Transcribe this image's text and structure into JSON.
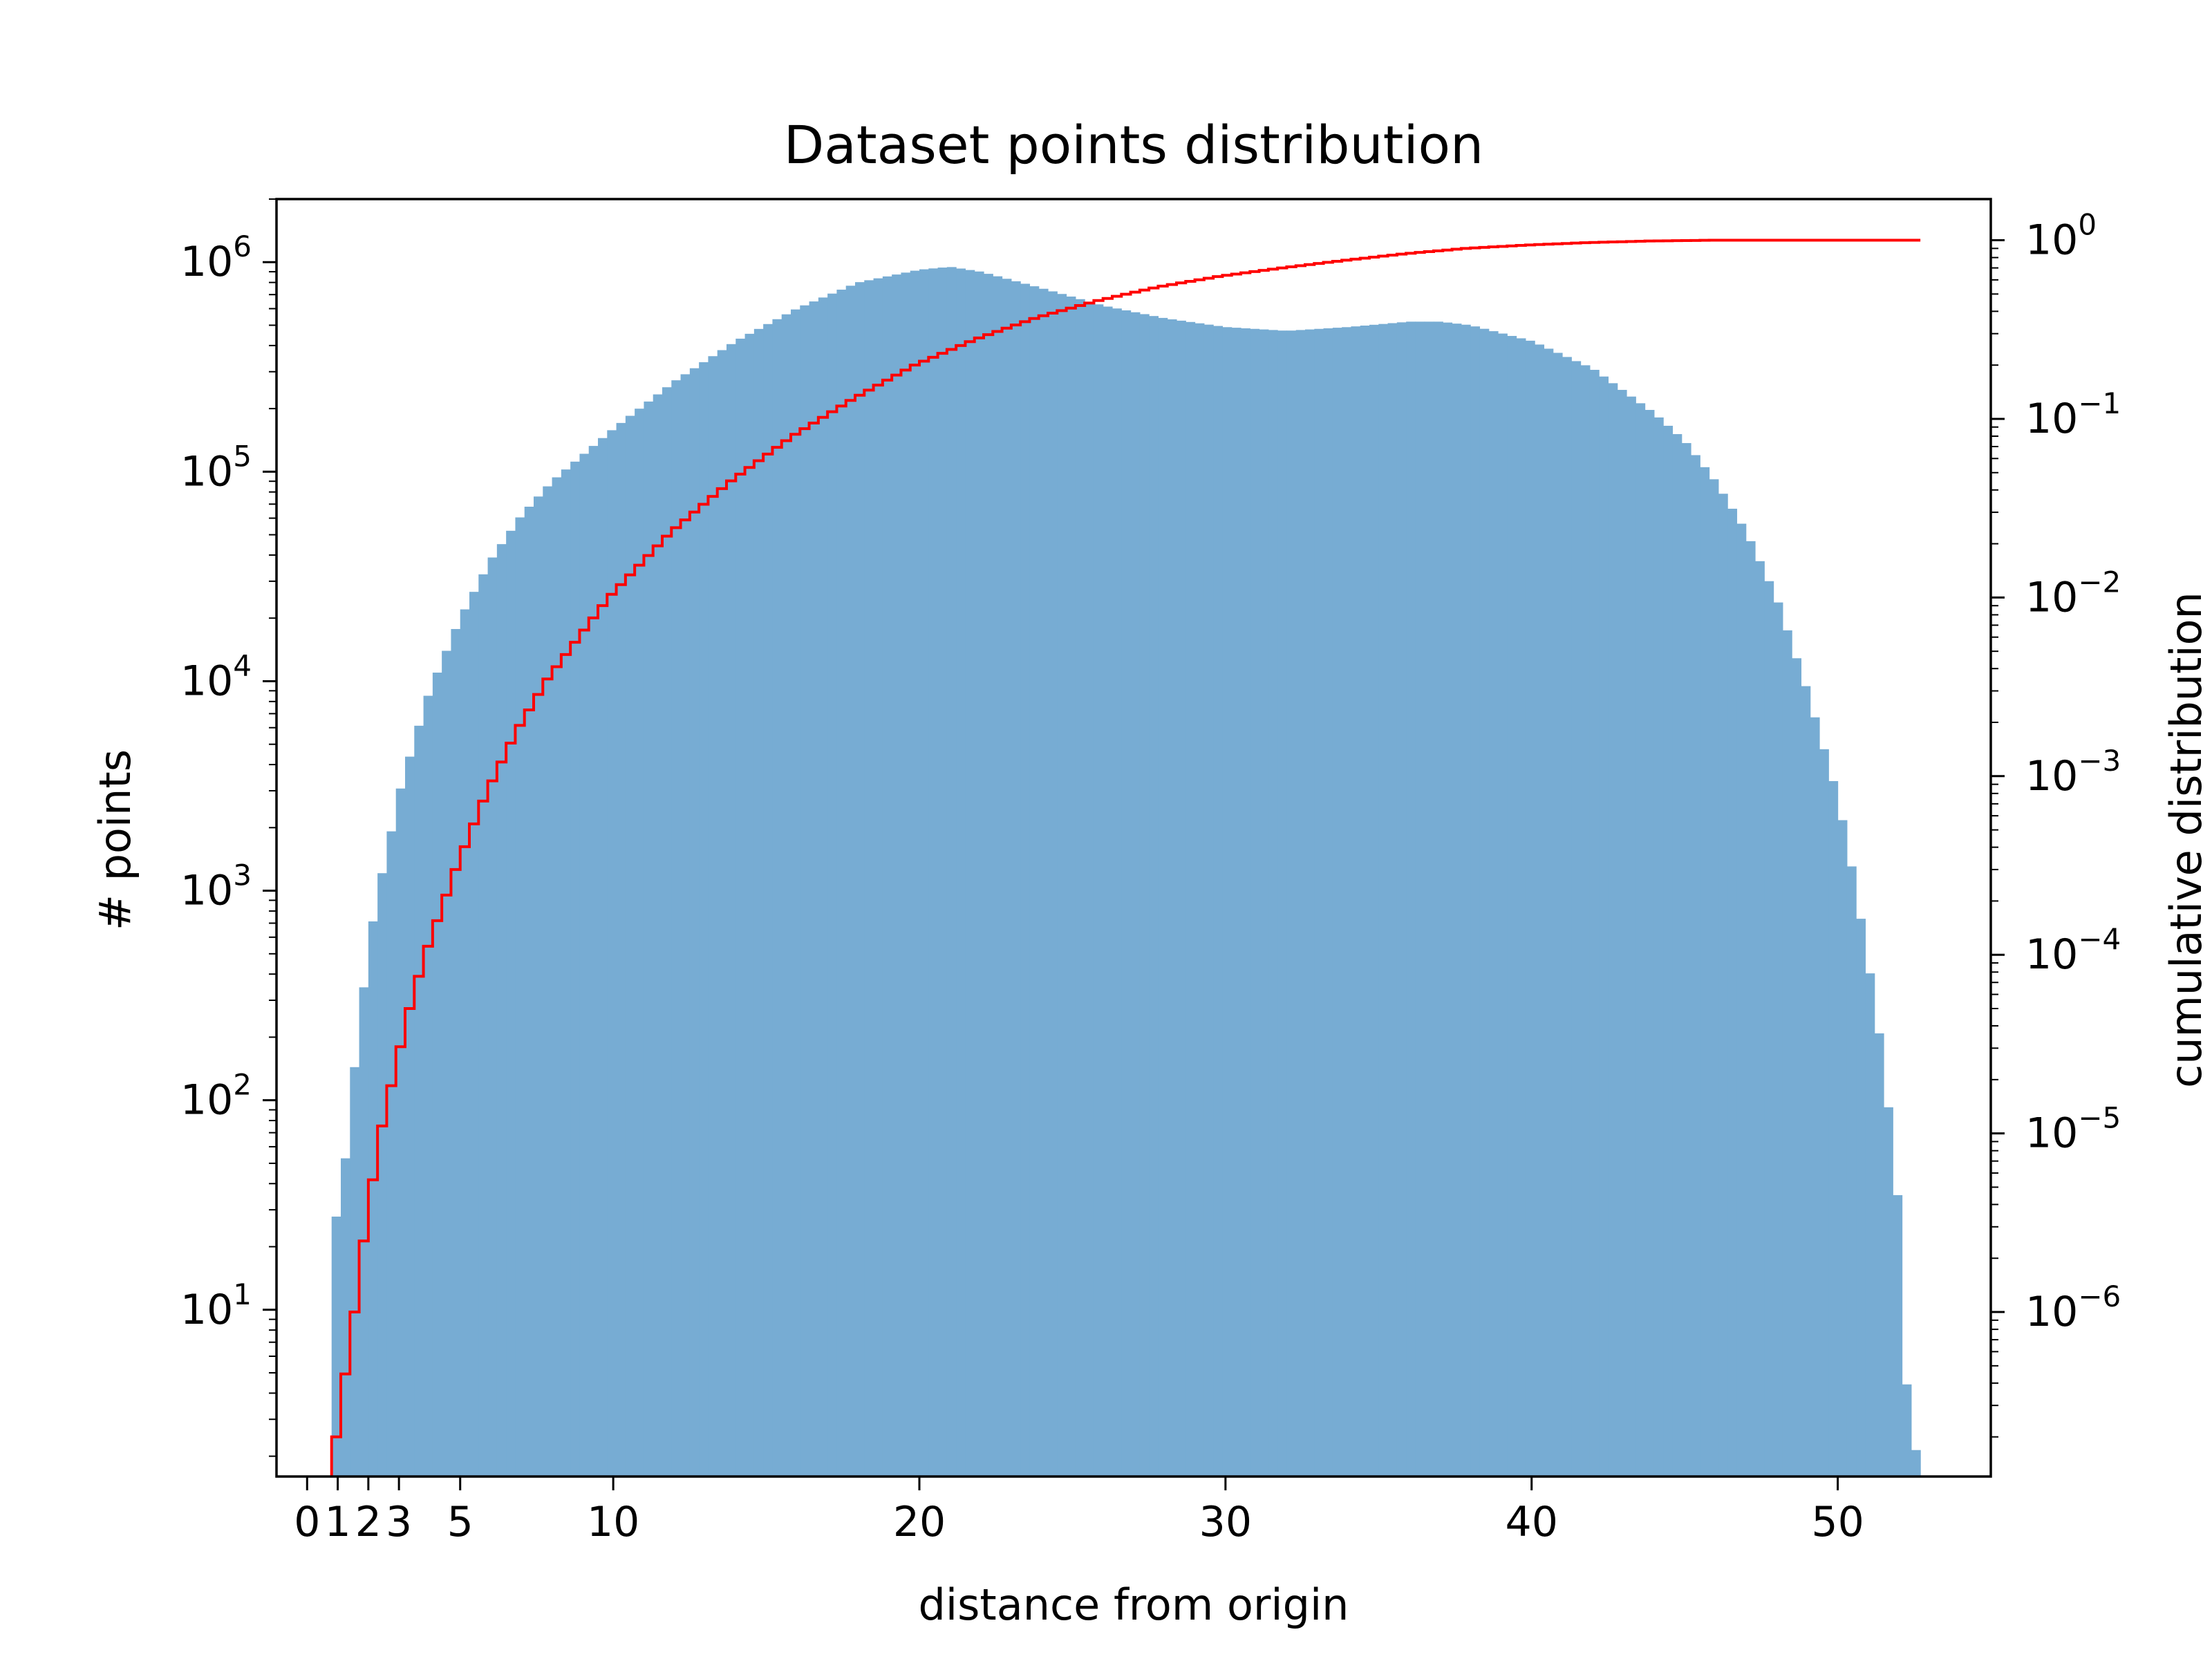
{
  "chart_data": {
    "type": "bar",
    "title": "Dataset points distribution",
    "xlabel": "distance from origin",
    "ylabel": "# points",
    "y2label": "cumulative distribution",
    "xlim": [
      -1,
      55
    ],
    "ylim": [
      1.6,
      2000000
    ],
    "y2lim": [
      1.2e-07,
      1.7
    ],
    "yscale": "log",
    "y2scale": "log",
    "grid": false,
    "xticks": [
      0,
      1,
      2,
      3,
      5,
      10,
      20,
      30,
      40,
      50
    ],
    "xtick_labels": [
      "0",
      "1",
      "2",
      "3",
      "5",
      "10",
      "20",
      "30",
      "40",
      "50"
    ],
    "yticks": [
      10,
      100,
      1000,
      10000,
      100000,
      1000000
    ],
    "ytick_labels": [
      {
        "base": "10",
        "exp": "1"
      },
      {
        "base": "10",
        "exp": "2"
      },
      {
        "base": "10",
        "exp": "3"
      },
      {
        "base": "10",
        "exp": "4"
      },
      {
        "base": "10",
        "exp": "5"
      },
      {
        "base": "10",
        "exp": "6"
      }
    ],
    "y2ticks": [
      1e-06,
      1e-05,
      0.0001,
      0.001,
      0.01,
      0.1,
      1
    ],
    "y2tick_labels": [
      {
        "base": "10",
        "exp": "−6"
      },
      {
        "base": "10",
        "exp": "−5"
      },
      {
        "base": "10",
        "exp": "−4"
      },
      {
        "base": "10",
        "exp": "−3"
      },
      {
        "base": "10",
        "exp": "−2"
      },
      {
        "base": "10",
        "exp": "−1"
      },
      {
        "base": "10",
        "exp": "0"
      }
    ],
    "bin_width": 0.3,
    "bin_start": 0.8,
    "bin_end": 52.7,
    "histogram_profile": {
      "x": [
        0.8,
        1.1,
        1.4,
        1.7,
        2.0,
        2.3,
        2.6,
        3.0,
        3.5,
        4.0,
        5.0,
        6.0,
        7.0,
        8.0,
        10.0,
        12.0,
        14.0,
        16.0,
        18.0,
        20.0,
        21.0,
        22.0,
        24.0,
        26.0,
        28.0,
        30.0,
        32.0,
        34.0,
        36.0,
        37.0,
        38.0,
        40.0,
        42.0,
        44.0,
        45.0,
        46.0,
        47.0,
        48.0,
        49.0,
        50.0,
        50.5,
        51.0,
        51.5,
        52.0,
        52.3,
        52.6
      ],
      "counts": [
        25,
        31,
        90,
        230,
        520,
        980,
        1500,
        2900,
        5200,
        9000,
        20000,
        38000,
        62000,
        90000,
        160000,
        270000,
        420000,
        600000,
        800000,
        920000,
        950000,
        900000,
        750000,
        620000,
        540000,
        490000,
        470000,
        490000,
        520000,
        520000,
        500000,
        420000,
        310000,
        190000,
        140000,
        90000,
        52000,
        25000,
        9000,
        2800,
        1200,
        450,
        150,
        30,
        3,
        2
      ]
    },
    "cumulative_profile": {
      "x": [
        0.8,
        1.1,
        1.4,
        1.7,
        2.0,
        2.3,
        2.6,
        3.0,
        3.5,
        4.0,
        5.0,
        6.0,
        7.0,
        8.0,
        10.0,
        12.0,
        14.0,
        16.0,
        18.0,
        20.0,
        22.0,
        24.0,
        26.0,
        28.0,
        30.0,
        32.0,
        34.0,
        36.0,
        38.0,
        40.0,
        42.0,
        44.0,
        46.0,
        48.0,
        50.0,
        52.6
      ],
      "values": [
        1.2e-07,
        2e-07,
        4.5e-07,
        1e-06,
        2.5e-06,
        5.5e-06,
        1.1e-05,
        2.2e-05,
        5e-05,
        0.0001,
        0.0003,
        0.0008,
        0.0018,
        0.0035,
        0.01,
        0.023,
        0.045,
        0.08,
        0.13,
        0.2,
        0.28,
        0.37,
        0.46,
        0.55,
        0.63,
        0.7,
        0.77,
        0.84,
        0.9,
        0.94,
        0.97,
        0.99,
        1.0,
        1.0,
        1.0,
        1.0
      ]
    },
    "colors": {
      "bars": "#77acd3",
      "cumulative": "#ff0000",
      "axes": "#000000"
    }
  }
}
